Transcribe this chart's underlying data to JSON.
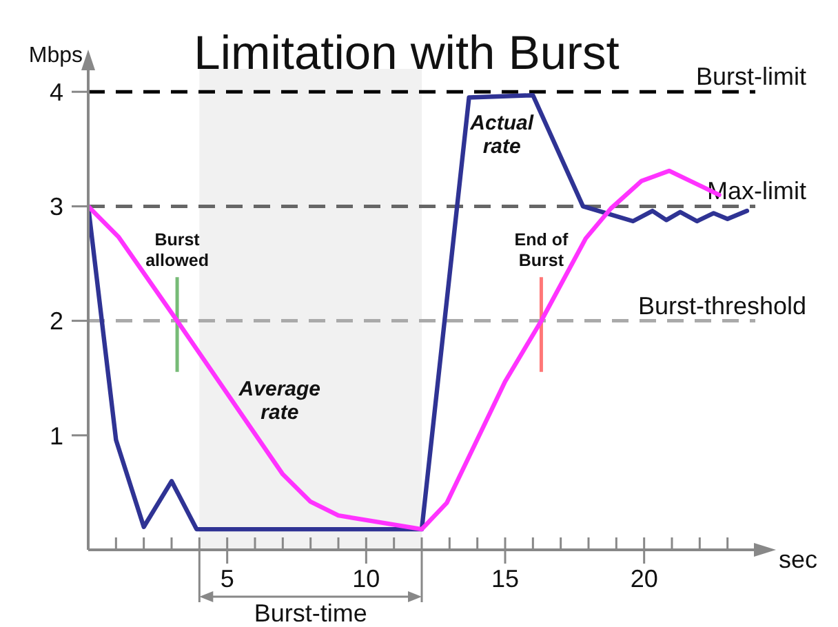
{
  "chart_data": {
    "type": "line",
    "title": "Limitation with Burst",
    "xlabel": "sec",
    "ylabel": "Mbps",
    "series": [
      {
        "name": "Actual rate",
        "color": "#2f3394",
        "x": [
          0,
          1,
          2,
          3,
          3.9,
          12,
          13.7,
          16,
          17.8,
          19.6,
          20.3,
          20.8,
          21.3,
          21.9,
          22.5,
          23,
          23.7
        ],
        "values": [
          3,
          0.96,
          0.2,
          0.6,
          0.18,
          0.18,
          3.95,
          3.97,
          3.0,
          2.87,
          2.96,
          2.88,
          2.95,
          2.87,
          2.94,
          2.89,
          2.96
        ]
      },
      {
        "name": "Average rate",
        "color": "#ff33ff",
        "x": [
          0,
          1.1,
          3.2,
          7,
          8,
          9,
          12,
          12.9,
          15,
          16.3,
          17.9,
          18.8,
          19.9,
          20.9,
          22.7
        ],
        "values": [
          3,
          2.73,
          2.0,
          0.66,
          0.42,
          0.3,
          0.18,
          0.41,
          1.47,
          2.0,
          2.72,
          2.98,
          3.22,
          3.31,
          3.1
        ]
      }
    ],
    "xlim": [
      0,
      24
    ],
    "xticks": [
      {
        "value": 1,
        "label": null
      },
      {
        "value": 2,
        "label": null
      },
      {
        "value": 3,
        "label": null
      },
      {
        "value": 4,
        "label": null
      },
      5,
      {
        "value": 6,
        "label": null
      },
      {
        "value": 7,
        "label": null
      },
      {
        "value": 8,
        "label": null
      },
      {
        "value": 9,
        "label": null
      },
      10,
      {
        "value": 11,
        "label": null
      },
      {
        "value": 12,
        "label": null
      },
      {
        "value": 13,
        "label": null
      },
      {
        "value": 14,
        "label": null
      },
      15,
      {
        "value": 16,
        "label": null
      },
      {
        "value": 17,
        "label": null
      },
      {
        "value": 18,
        "label": null
      },
      {
        "value": 19,
        "label": null
      },
      20,
      {
        "value": 21,
        "label": null
      },
      {
        "value": 22,
        "label": null
      },
      {
        "value": 23,
        "label": null
      }
    ],
    "ylim": [
      0,
      4.2
    ],
    "yticks": [
      1,
      2,
      3,
      4
    ],
    "ref_lines": [
      {
        "axis": "y",
        "value": 4,
        "label": "Burst-limit",
        "color": "#000000",
        "line_style": "dashed"
      },
      {
        "axis": "y",
        "value": 3,
        "label": "Max-limit",
        "color": "#666666",
        "line_style": "dashed"
      },
      {
        "axis": "y",
        "value": 2,
        "label": "Burst-threshold",
        "color": "#aaaaaa",
        "line_style": "dashed"
      },
      {
        "axis": "x",
        "value": 3.2,
        "label": "Burst allowed",
        "color": "#77bb77"
      },
      {
        "axis": "x",
        "value": 16.3,
        "label": "End of Burst",
        "color": "#ff7777"
      }
    ],
    "bands": [
      {
        "axis": "x",
        "from": 4,
        "to": 12,
        "label": "Burst-time",
        "color": "#f1f1f1"
      }
    ],
    "line_style": "solid"
  }
}
